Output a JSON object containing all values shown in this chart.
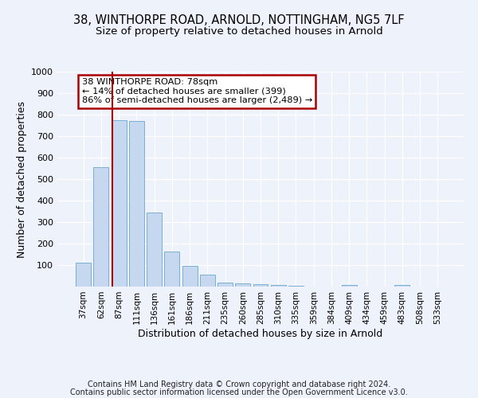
{
  "title1": "38, WINTHORPE ROAD, ARNOLD, NOTTINGHAM, NG5 7LF",
  "title2": "Size of property relative to detached houses in Arnold",
  "xlabel": "Distribution of detached houses by size in Arnold",
  "ylabel": "Number of detached properties",
  "categories": [
    "37sqm",
    "62sqm",
    "87sqm",
    "111sqm",
    "136sqm",
    "161sqm",
    "186sqm",
    "211sqm",
    "235sqm",
    "260sqm",
    "285sqm",
    "310sqm",
    "335sqm",
    "359sqm",
    "384sqm",
    "409sqm",
    "434sqm",
    "459sqm",
    "483sqm",
    "508sqm",
    "533sqm"
  ],
  "values": [
    110,
    555,
    775,
    770,
    345,
    163,
    98,
    54,
    20,
    13,
    10,
    7,
    5,
    0,
    0,
    8,
    0,
    0,
    8,
    0,
    0
  ],
  "bar_color": "#c5d8f0",
  "bar_edge_color": "#7bafd4",
  "annotation_line1": "38 WINTHORPE ROAD: 78sqm",
  "annotation_line2": "← 14% of detached houses are smaller (399)",
  "annotation_line3": "86% of semi-detached houses are larger (2,489) →",
  "annotation_box_color": "#ffffff",
  "annotation_box_edge_color": "#aa0000",
  "ylim": [
    0,
    1000
  ],
  "yticks": [
    0,
    100,
    200,
    300,
    400,
    500,
    600,
    700,
    800,
    900,
    1000
  ],
  "footer_line1": "Contains HM Land Registry data © Crown copyright and database right 2024.",
  "footer_line2": "Contains public sector information licensed under the Open Government Licence v3.0.",
  "background_color": "#eef2fb",
  "grid_color": "#ffffff",
  "title1_fontsize": 10.5,
  "title2_fontsize": 9.5
}
